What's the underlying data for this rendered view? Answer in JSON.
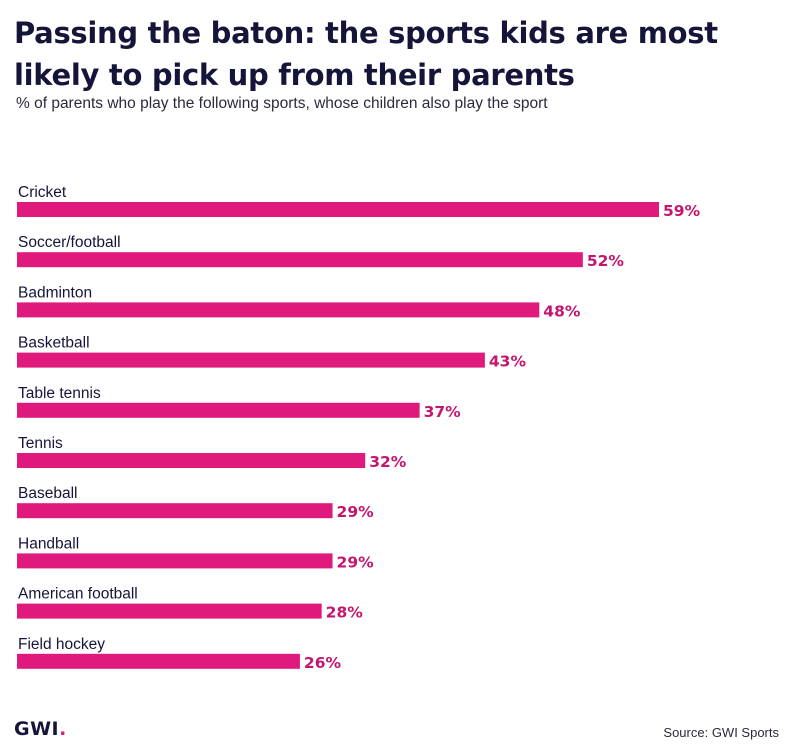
{
  "header": {
    "title": "Passing the baton: the sports kids are most likely to pick up from their parents",
    "subtitle": "% of parents who play the following sports, whose children also play the sport"
  },
  "footer": {
    "logo_text": "GWI",
    "logo_dot": ".",
    "source": "Source: GWI Sports"
  },
  "colors": {
    "bar": "#e0197d",
    "value_label": "#c4166e",
    "text": "#15153a",
    "accent_dot": "#e0197d"
  },
  "chart_data": {
    "type": "bar",
    "orientation": "horizontal",
    "title": "Passing the baton: the sports kids are most likely to pick up from their parents",
    "subtitle": "% of parents who play the following sports, whose children also play the sport",
    "categories": [
      "Cricket",
      "Soccer/football",
      "Badminton",
      "Basketball",
      "Table tennis",
      "Tennis",
      "Baseball",
      "Handball",
      "American football",
      "Field hockey"
    ],
    "values": [
      59,
      52,
      48,
      43,
      37,
      32,
      29,
      29,
      28,
      26
    ],
    "value_labels": [
      "59%",
      "52%",
      "48%",
      "43%",
      "37%",
      "32%",
      "29%",
      "29%",
      "28%",
      "26%"
    ],
    "unit": "%",
    "xlim": [
      0,
      59
    ],
    "grid": false,
    "legend": "none"
  }
}
